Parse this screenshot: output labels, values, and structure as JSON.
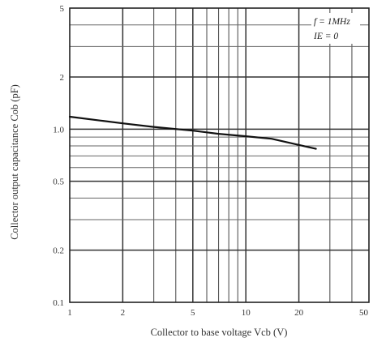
{
  "chart_data": {
    "type": "line",
    "xlabel": "Collector to base voltage  Vcb  (V)",
    "ylabel": "Collector output capacitance  Cob  (pF)",
    "x_scale": "log",
    "y_scale": "log",
    "xlim": [
      1,
      50
    ],
    "ylim": [
      0.1,
      5
    ],
    "x_ticks": [
      1,
      2,
      5,
      10,
      20,
      50
    ],
    "x_tick_labels": [
      "1",
      "2",
      "5",
      "10",
      "20",
      "50"
    ],
    "y_ticks": [
      0.1,
      0.2,
      0.5,
      1.0,
      2,
      5
    ],
    "y_tick_labels": [
      "0.1",
      "0.2",
      "0.5",
      "1.0",
      "2",
      "5"
    ],
    "grid": true,
    "annotations": [
      "f = 1MHz",
      "IE = 0"
    ],
    "series": [
      {
        "x": [
          1,
          1.5,
          2,
          3,
          5,
          7,
          10,
          14,
          18,
          25
        ],
        "y": [
          1.18,
          1.12,
          1.08,
          1.03,
          0.98,
          0.94,
          0.91,
          0.88,
          0.83,
          0.77
        ]
      }
    ]
  }
}
